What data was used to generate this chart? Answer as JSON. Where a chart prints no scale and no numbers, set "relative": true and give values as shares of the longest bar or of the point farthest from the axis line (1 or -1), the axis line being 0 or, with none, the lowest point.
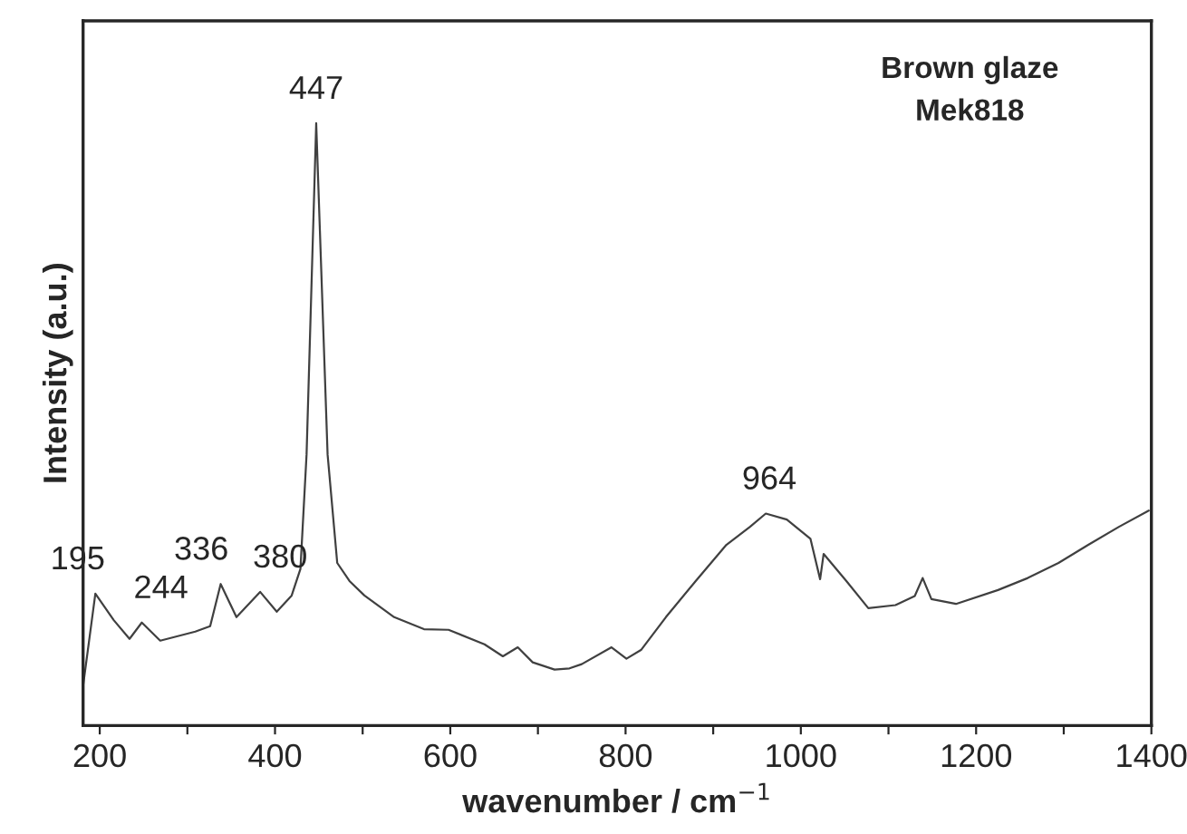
{
  "chart_data": {
    "type": "line",
    "title": "Brown glaze",
    "subtitle": "Mek818",
    "xlabel": "wavenumber / cm$^{−1}$",
    "ylabel": "Intensity (a.u.)",
    "relative": true,
    "tick_labels": "x",
    "grid": false,
    "legend": false,
    "marker": "none",
    "line_style": "solid",
    "xlim": [
      181,
      1400
    ],
    "xticks": [
      200,
      {
        "value": 300,
        "label": null
      },
      400,
      {
        "value": 500,
        "label": null
      },
      600,
      {
        "value": 700,
        "label": null
      },
      800,
      {
        "value": 900,
        "label": null
      },
      1000,
      {
        "value": 1100,
        "label": null
      },
      1200,
      {
        "value": 1300,
        "label": null
      },
      1400
    ],
    "annotations": [
      {
        "text": "195",
        "x": 195,
        "y": 0.219
      },
      {
        "text": "244",
        "x": 244,
        "y": 0.171
      },
      {
        "text": "336",
        "x": 336,
        "y": 0.235
      },
      {
        "text": "380",
        "x": 380,
        "y": 0.222
      },
      {
        "text": "447",
        "x": 447,
        "y": 1
      },
      {
        "text": "964",
        "x": 964,
        "y": 0.352
      }
    ],
    "series": [
      {
        "color": "#404040",
        "x": [
          181,
          195,
          216,
          234,
          248,
          269,
          309,
          326,
          338,
          356,
          383,
          402,
          419,
          429,
          436,
          447,
          460,
          471,
          485,
          502,
          536,
          570,
          598,
          639,
          660,
          677,
          694,
          719,
          736,
          750,
          784,
          801,
          818,
          846,
          880,
          915,
          942,
          960,
          984,
          1011,
          1022,
          1026,
          1052,
          1077,
          1108,
          1130,
          1139,
          1149,
          1177,
          1225,
          1259,
          1294,
          1328,
          1363,
          1397
        ],
        "values": [
          0.066,
          0.219,
          0.175,
          0.144,
          0.171,
          0.141,
          0.156,
          0.165,
          0.235,
          0.18,
          0.222,
          0.189,
          0.216,
          0.26,
          0.45,
          1,
          0.45,
          0.27,
          0.24,
          0.216,
          0.18,
          0.16,
          0.159,
          0.135,
          0.115,
          0.13,
          0.105,
          0.093,
          0.095,
          0.102,
          0.13,
          0.111,
          0.126,
          0.18,
          0.24,
          0.3,
          0.33,
          0.352,
          0.342,
          0.31,
          0.243,
          0.285,
          0.24,
          0.195,
          0.2,
          0.215,
          0.245,
          0.21,
          0.202,
          0.225,
          0.245,
          0.27,
          0.3,
          0.33,
          0.357
        ]
      }
    ]
  }
}
